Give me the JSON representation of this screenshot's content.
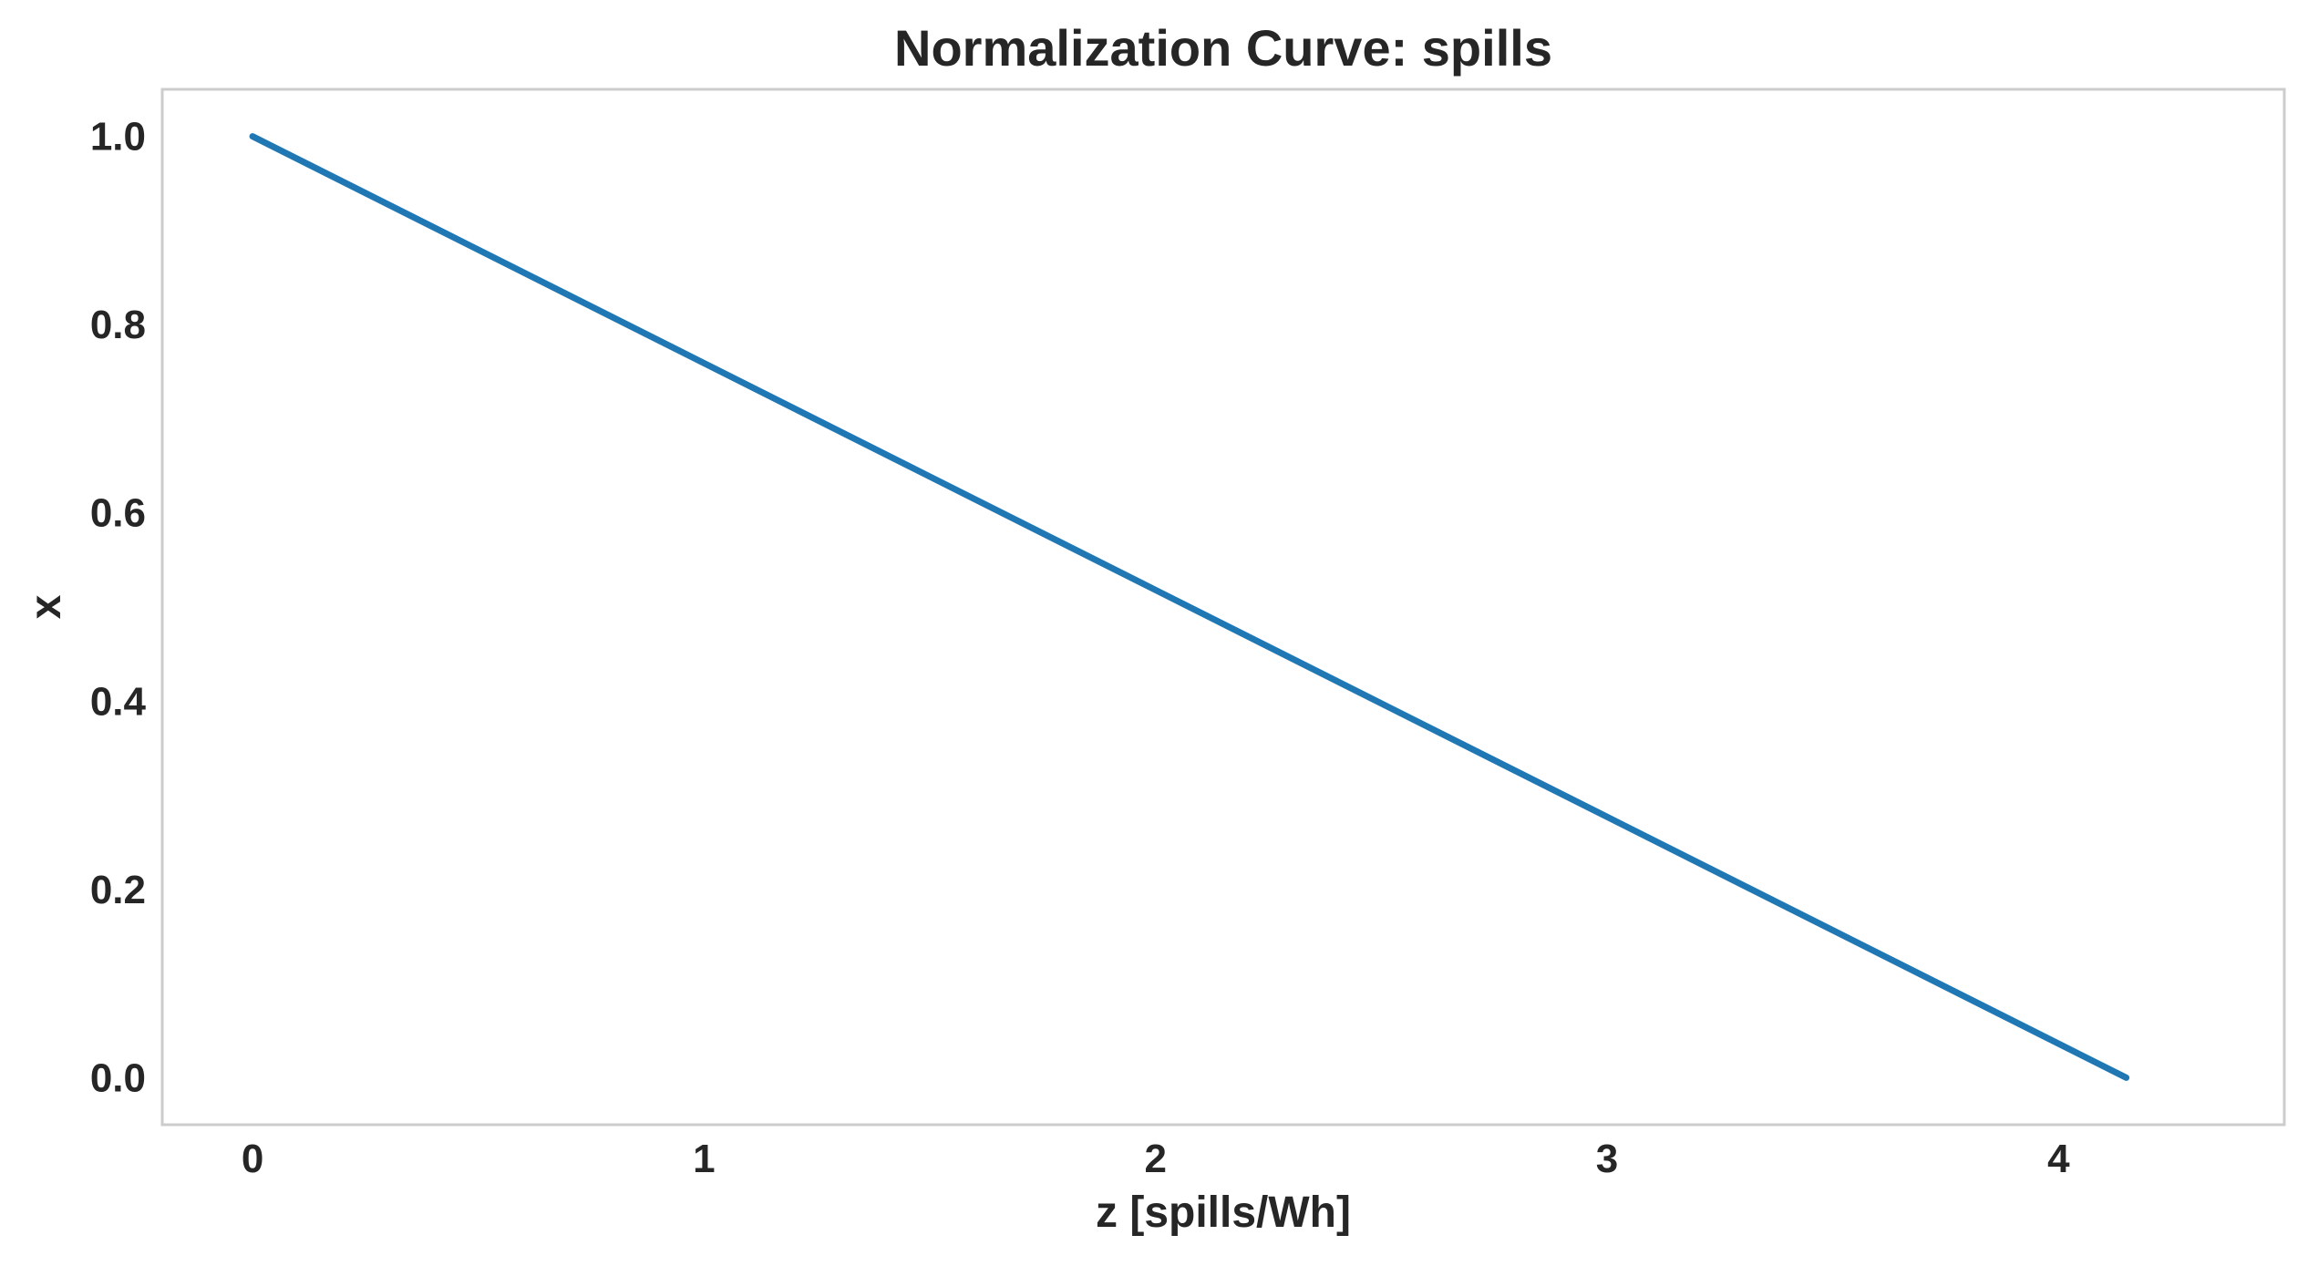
{
  "chart_data": {
    "type": "line",
    "title": "Normalization Curve: spills",
    "xlabel": "z [spills/Wh]",
    "ylabel": "x",
    "xlim": [
      -0.2,
      4.5
    ],
    "ylim": [
      -0.05,
      1.05
    ],
    "xticks": [
      0,
      1,
      2,
      3,
      4
    ],
    "xtick_labels": [
      "0",
      "1",
      "2",
      "3",
      "4"
    ],
    "yticks": [
      0.0,
      0.2,
      0.4,
      0.6,
      0.8,
      1.0
    ],
    "ytick_labels": [
      "0.0",
      "0.2",
      "0.4",
      "0.6",
      "0.8",
      "1.0"
    ],
    "grid": false,
    "series": [
      {
        "color": "#1f77b4",
        "x": [
          0,
          4.15
        ],
        "y": [
          1.0,
          0.0
        ]
      }
    ]
  }
}
